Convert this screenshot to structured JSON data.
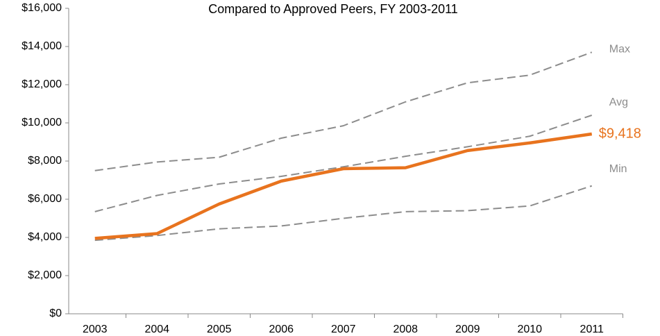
{
  "chart_data": {
    "type": "line",
    "title": "Compared to Approved Peers, FY 2003-2011",
    "categories": [
      "2003",
      "2004",
      "2005",
      "2006",
      "2007",
      "2008",
      "2009",
      "2010",
      "2011"
    ],
    "series": [
      {
        "name": "Max",
        "color": "#8c8c8c",
        "dashed": true,
        "values": [
          7500,
          7950,
          8200,
          9200,
          9850,
          11100,
          12100,
          12500,
          13700
        ]
      },
      {
        "name": "Avg",
        "color": "#8c8c8c",
        "dashed": true,
        "values": [
          5350,
          6200,
          6800,
          7200,
          7700,
          8250,
          8750,
          9300,
          10400
        ]
      },
      {
        "name": "Min",
        "color": "#8c8c8c",
        "dashed": true,
        "values": [
          3850,
          4100,
          4450,
          4600,
          5000,
          5350,
          5400,
          5650,
          6700
        ]
      },
      {
        "color": "#e8731e",
        "dashed": false,
        "values": [
          3950,
          4200,
          5750,
          6950,
          7600,
          7650,
          8550,
          8950,
          9418
        ],
        "value_labels": [
          null,
          null,
          null,
          null,
          null,
          null,
          null,
          null,
          "$9,418"
        ]
      }
    ],
    "ylim": [
      0,
      16000
    ],
    "yticks": [
      {
        "value": 0,
        "label": "$0"
      },
      {
        "value": 2000,
        "label": "$2,000"
      },
      {
        "value": 4000,
        "label": "$4,000"
      },
      {
        "value": 6000,
        "label": "$6,000"
      },
      {
        "value": 8000,
        "label": "$8,000"
      },
      {
        "value": 10000,
        "label": "$10,000"
      },
      {
        "value": 12000,
        "label": "$12,000"
      },
      {
        "value": 14000,
        "label": "$14,000"
      },
      {
        "value": 16000,
        "label": "$16,000"
      }
    ],
    "grid": false
  }
}
